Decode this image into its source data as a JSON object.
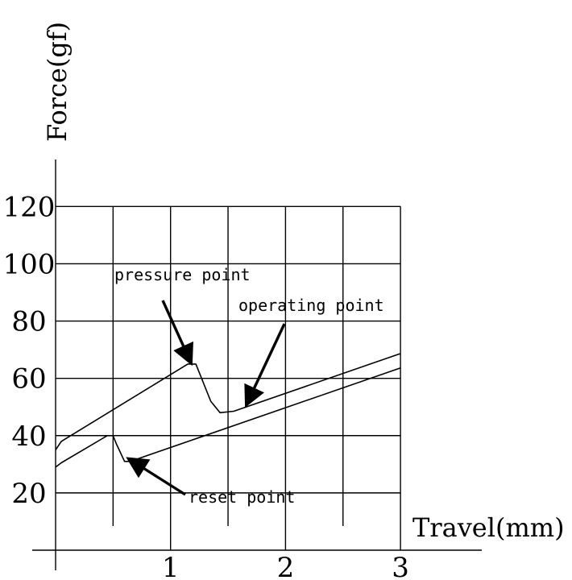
{
  "chart_data": {
    "type": "line",
    "xlabel": "Travel(mm)",
    "ylabel": "Force(gf)",
    "xlim": [
      0,
      3
    ],
    "ylim": [
      0,
      140
    ],
    "xticks": [
      1,
      2,
      3
    ],
    "yticks": [
      20,
      40,
      60,
      80,
      100,
      120
    ],
    "grid": true,
    "legend": "none",
    "series": [
      {
        "x": [
          0,
          0.05,
          1.15,
          1.22,
          1.27,
          1.35,
          1.43,
          1.55,
          2.99,
          3.0
        ],
        "y": [
          35,
          38,
          65,
          65,
          60,
          52,
          48,
          48.5,
          68.5,
          68.5
        ]
      },
      {
        "x": [
          0,
          0.05,
          0.45,
          0.5,
          0.53,
          0.6,
          0.65,
          2.99,
          3.0
        ],
        "y": [
          29,
          30.5,
          40,
          40,
          37,
          31,
          31,
          63.5,
          63.5
        ]
      }
    ],
    "annotations": [
      {
        "text": "pressure point",
        "x": 1.2,
        "y": 65
      },
      {
        "text": "operating point",
        "x": 1.65,
        "y": 50
      },
      {
        "text": "reset point",
        "x": 0.63,
        "y": 31
      }
    ]
  }
}
